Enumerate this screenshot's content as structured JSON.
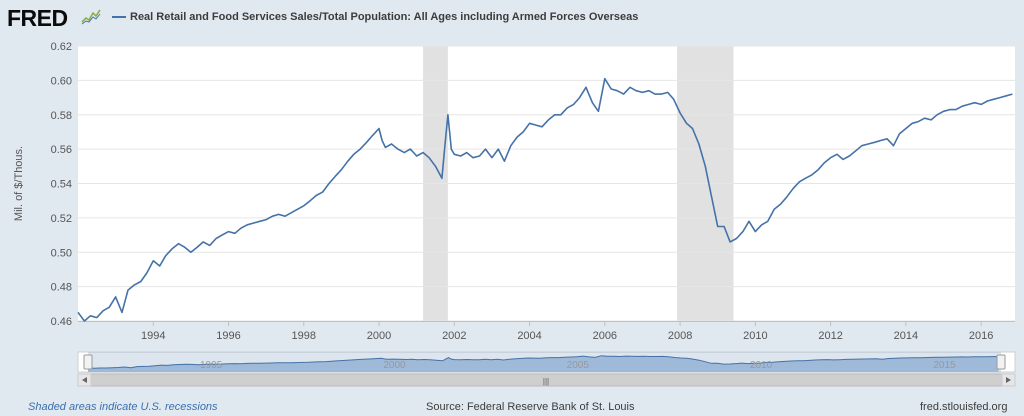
{
  "header": {
    "logo_text": "FRED",
    "logo_icon": "chart-line-icon",
    "series_title": "Real Retail and Food Services Sales/Total Population: All Ages including Armed Forces Overseas",
    "series_color": "#4572a7"
  },
  "footer": {
    "recession_note": "Shaded areas indicate U.S. recessions",
    "source": "Source: Federal Reserve Bank of St. Louis",
    "url": "fred.stlouisfed.org"
  },
  "navigator": {
    "tick_labels": [
      "1995",
      "2000",
      "2005",
      "2010",
      "2015"
    ],
    "scroll_grip": "|||"
  },
  "chart_data": {
    "type": "line",
    "title": "Real Retail and Food Services Sales/Total Population: All Ages including Armed Forces Overseas",
    "xlabel": "",
    "ylabel": "Mil. of $/Thous.",
    "xlim": [
      1992.0,
      2016.9
    ],
    "ylim": [
      0.46,
      0.62
    ],
    "y_ticks": [
      0.46,
      0.48,
      0.5,
      0.52,
      0.54,
      0.56,
      0.58,
      0.6,
      0.62
    ],
    "y_tick_labels": [
      "0.46",
      "0.48",
      "0.50",
      "0.52",
      "0.54",
      "0.56",
      "0.58",
      "0.60",
      "0.62"
    ],
    "x_ticks": [
      1994,
      1996,
      1998,
      2000,
      2002,
      2004,
      2006,
      2008,
      2010,
      2012,
      2014,
      2016
    ],
    "x_tick_labels": [
      "1994",
      "1996",
      "1998",
      "2000",
      "2002",
      "2004",
      "2006",
      "2008",
      "2010",
      "2012",
      "2014",
      "2016"
    ],
    "grid": true,
    "recessions": [
      [
        2001.17,
        2001.83
      ],
      [
        2007.92,
        2009.42
      ]
    ],
    "series": [
      {
        "name": "Real Retail and Food Services Sales/Total Population: All Ages including Armed Forces Overseas",
        "x": [
          1992.0,
          1992.17,
          1992.33,
          1992.5,
          1992.67,
          1992.83,
          1993.0,
          1993.17,
          1993.33,
          1993.5,
          1993.67,
          1993.83,
          1994.0,
          1994.17,
          1994.33,
          1994.5,
          1994.67,
          1994.83,
          1995.0,
          1995.17,
          1995.33,
          1995.5,
          1995.67,
          1995.83,
          1996.0,
          1996.17,
          1996.33,
          1996.5,
          1996.67,
          1996.83,
          1997.0,
          1997.17,
          1997.33,
          1997.5,
          1997.67,
          1997.83,
          1998.0,
          1998.17,
          1998.33,
          1998.5,
          1998.67,
          1998.83,
          1999.0,
          1999.17,
          1999.33,
          1999.5,
          1999.67,
          1999.83,
          2000.0,
          2000.08,
          2000.17,
          2000.33,
          2000.5,
          2000.67,
          2000.83,
          2001.0,
          2001.17,
          2001.33,
          2001.5,
          2001.67,
          2001.75,
          2001.83,
          2001.92,
          2002.0,
          2002.17,
          2002.33,
          2002.5,
          2002.67,
          2002.83,
          2003.0,
          2003.17,
          2003.33,
          2003.5,
          2003.67,
          2003.83,
          2004.0,
          2004.17,
          2004.33,
          2004.5,
          2004.67,
          2004.83,
          2005.0,
          2005.17,
          2005.33,
          2005.5,
          2005.67,
          2005.83,
          2006.0,
          2006.17,
          2006.33,
          2006.5,
          2006.67,
          2006.83,
          2007.0,
          2007.17,
          2007.33,
          2007.5,
          2007.67,
          2007.83,
          2008.0,
          2008.17,
          2008.33,
          2008.5,
          2008.67,
          2008.83,
          2009.0,
          2009.17,
          2009.33,
          2009.5,
          2009.67,
          2009.83,
          2010.0,
          2010.17,
          2010.33,
          2010.5,
          2010.67,
          2010.83,
          2011.0,
          2011.17,
          2011.33,
          2011.5,
          2011.67,
          2011.83,
          2012.0,
          2012.17,
          2012.33,
          2012.5,
          2012.67,
          2012.83,
          2013.0,
          2013.17,
          2013.33,
          2013.5,
          2013.67,
          2013.83,
          2014.0,
          2014.17,
          2014.33,
          2014.5,
          2014.67,
          2014.83,
          2015.0,
          2015.17,
          2015.33,
          2015.5,
          2015.67,
          2015.83,
          2016.0,
          2016.17,
          2016.33,
          2016.5,
          2016.67,
          2016.83
        ],
        "values": [
          0.465,
          0.46,
          0.463,
          0.462,
          0.466,
          0.468,
          0.474,
          0.465,
          0.478,
          0.481,
          0.483,
          0.488,
          0.495,
          0.492,
          0.498,
          0.502,
          0.505,
          0.503,
          0.5,
          0.503,
          0.506,
          0.504,
          0.508,
          0.51,
          0.512,
          0.511,
          0.514,
          0.516,
          0.517,
          0.518,
          0.519,
          0.521,
          0.522,
          0.521,
          0.523,
          0.525,
          0.527,
          0.53,
          0.533,
          0.535,
          0.54,
          0.544,
          0.548,
          0.553,
          0.557,
          0.56,
          0.564,
          0.568,
          0.572,
          0.565,
          0.561,
          0.563,
          0.56,
          0.558,
          0.56,
          0.556,
          0.558,
          0.555,
          0.55,
          0.543,
          0.562,
          0.58,
          0.56,
          0.557,
          0.556,
          0.558,
          0.555,
          0.556,
          0.56,
          0.555,
          0.56,
          0.553,
          0.562,
          0.567,
          0.57,
          0.575,
          0.574,
          0.573,
          0.577,
          0.58,
          0.58,
          0.584,
          0.586,
          0.59,
          0.596,
          0.587,
          0.582,
          0.601,
          0.595,
          0.594,
          0.592,
          0.596,
          0.594,
          0.593,
          0.594,
          0.592,
          0.592,
          0.593,
          0.589,
          0.581,
          0.575,
          0.572,
          0.563,
          0.55,
          0.533,
          0.515,
          0.515,
          0.506,
          0.508,
          0.512,
          0.518,
          0.512,
          0.516,
          0.518,
          0.525,
          0.528,
          0.532,
          0.537,
          0.541,
          0.543,
          0.545,
          0.548,
          0.552,
          0.555,
          0.557,
          0.554,
          0.556,
          0.559,
          0.562,
          0.563,
          0.564,
          0.565,
          0.566,
          0.562,
          0.569,
          0.572,
          0.575,
          0.576,
          0.578,
          0.577,
          0.58,
          0.582,
          0.583,
          0.583,
          0.585,
          0.586,
          0.587,
          0.586,
          0.588,
          0.589,
          0.59,
          0.591,
          0.592
        ]
      }
    ]
  }
}
